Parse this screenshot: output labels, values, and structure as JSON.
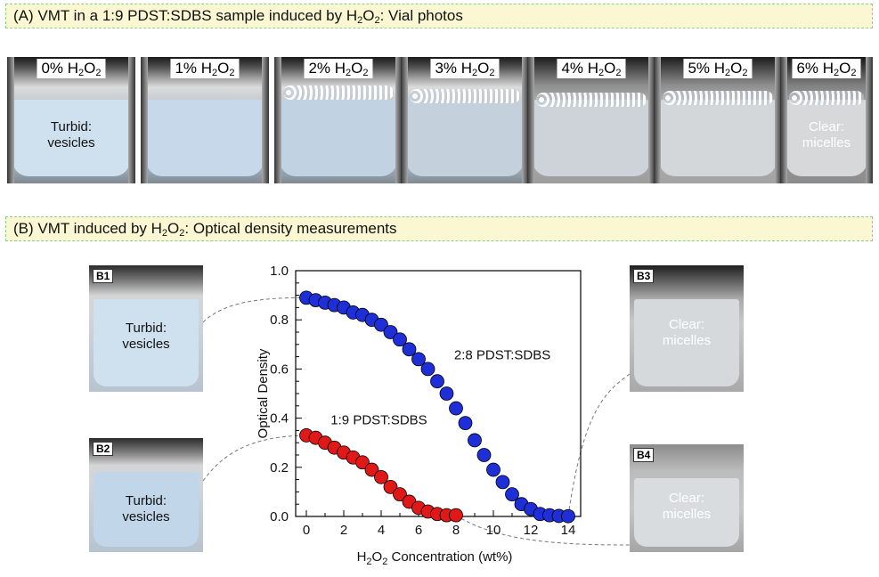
{
  "section_a": {
    "title_prefix": "(A) VMT in a 1:9 PDST:SDBS sample induced by H",
    "title_sub1": "2",
    "title_mid": "O",
    "title_sub2": "2",
    "title_suffix": ": Vial photos"
  },
  "vials": [
    {
      "pct": "0%",
      "text_top": "Turbid:",
      "text_bottom": "vesicles"
    },
    {
      "pct": "1%",
      "text_top": "",
      "text_bottom": ""
    },
    {
      "pct": "2%",
      "text_top": "",
      "text_bottom": ""
    },
    {
      "pct": "3%",
      "text_top": "",
      "text_bottom": ""
    },
    {
      "pct": "4%",
      "text_top": "",
      "text_bottom": ""
    },
    {
      "pct": "5%",
      "text_top": "",
      "text_bottom": ""
    },
    {
      "pct": "6%",
      "text_top": "Clear:",
      "text_bottom": "micelles"
    }
  ],
  "vial_label": {
    "h": " H",
    "o": "O",
    "sub": "2"
  },
  "section_b": {
    "title_prefix": "(B) VMT induced by H",
    "title_sub1": "2",
    "title_mid": "O",
    "title_sub2": "2",
    "title_suffix": ": Optical density measurements"
  },
  "side_vials": {
    "b1": {
      "tag": "B1",
      "text_top": "Turbid:",
      "text_bottom": "vesicles"
    },
    "b2": {
      "tag": "B2",
      "text_top": "Turbid:",
      "text_bottom": "vesicles"
    },
    "b3": {
      "tag": "B3",
      "text_top": "Clear:",
      "text_bottom": "micelles"
    },
    "b4": {
      "tag": "B4",
      "text_top": "Clear:",
      "text_bottom": "micelles"
    }
  },
  "colors": {
    "blue": "#1f2fd8",
    "red": "#e01818",
    "turbid": "#c5d9ea",
    "clear": "#dfe3e6"
  },
  "chart_data": {
    "type": "scatter",
    "xlabel_prefix": "H",
    "xlabel_sub1": "2",
    "xlabel_mid": "O",
    "xlabel_sub2": "2",
    "xlabel_suffix": " Concentration (wt%)",
    "ylabel": "Optical Density",
    "xlim": [
      0,
      15
    ],
    "ylim": [
      0,
      1.0
    ],
    "xticks": [
      0,
      2,
      4,
      6,
      8,
      10,
      12,
      14
    ],
    "yticks": [
      0.0,
      0.2,
      0.4,
      0.6,
      0.8,
      1.0
    ],
    "ytick_labels": [
      "0.0",
      "0.2",
      "0.4",
      "0.6",
      "0.8",
      "1.0"
    ],
    "series": [
      {
        "name": "2:8 PDST:SDBS",
        "color": "#1f2fd8",
        "x": [
          0,
          0.5,
          1,
          1.5,
          2,
          2.5,
          3,
          3.5,
          4,
          4.5,
          5,
          5.5,
          6,
          6.5,
          7,
          7.5,
          8,
          8.5,
          9,
          9.5,
          10,
          10.5,
          11,
          11.5,
          12,
          12.5,
          13,
          13.5,
          14
        ],
        "y": [
          0.89,
          0.88,
          0.87,
          0.86,
          0.85,
          0.83,
          0.82,
          0.8,
          0.78,
          0.75,
          0.72,
          0.68,
          0.64,
          0.6,
          0.55,
          0.5,
          0.44,
          0.38,
          0.31,
          0.25,
          0.19,
          0.14,
          0.09,
          0.05,
          0.03,
          0.01,
          0.005,
          0.002,
          0.001
        ]
      },
      {
        "name": "1:9 PDST:SDBS",
        "color": "#e01818",
        "x": [
          0,
          0.5,
          1,
          1.5,
          2,
          2.5,
          3,
          3.5,
          4,
          4.5,
          5,
          5.5,
          6,
          6.5,
          7,
          7.5,
          8
        ],
        "y": [
          0.33,
          0.32,
          0.3,
          0.28,
          0.26,
          0.24,
          0.22,
          0.19,
          0.16,
          0.12,
          0.09,
          0.06,
          0.035,
          0.02,
          0.01,
          0.005,
          0.005
        ]
      }
    ]
  }
}
